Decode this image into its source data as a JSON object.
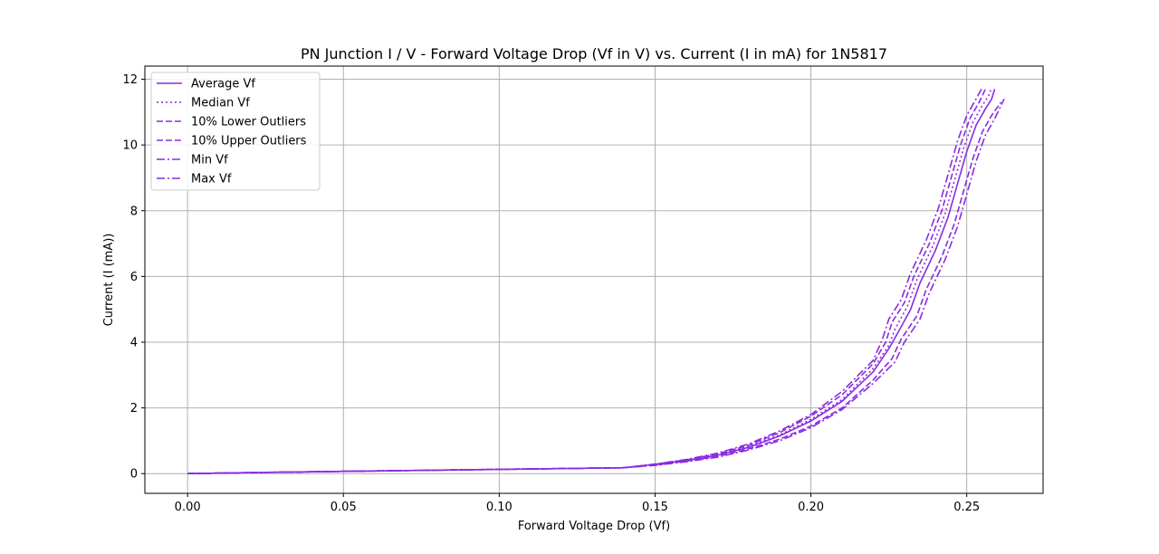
{
  "chart_data": {
    "type": "line",
    "title": "PN Junction I / V - Forward Voltage Drop (Vf in V) vs. Current (I in mA) for 1N5817",
    "xlabel": "Forward Voltage Drop (Vf)",
    "ylabel": "Current (I (mA))",
    "xlim": [
      -0.0137,
      0.2745
    ],
    "ylim": [
      -0.6,
      12.4
    ],
    "xticks": [
      0.0,
      0.05,
      0.1,
      0.15,
      0.2,
      0.25
    ],
    "xtick_labels": [
      "0.00",
      "0.05",
      "0.10",
      "0.15",
      "0.20",
      "0.25"
    ],
    "yticks": [
      0,
      2,
      4,
      6,
      8,
      10,
      12
    ],
    "ytick_labels": [
      "0",
      "2",
      "4",
      "6",
      "8",
      "10",
      "12"
    ],
    "grid": true,
    "legend_position": "top-left",
    "color": "#8a2be2",
    "series": [
      {
        "name": "Average Vf",
        "dash": "solid",
        "points": [
          [
            0.0,
            0.0
          ],
          [
            0.02,
            0.03
          ],
          [
            0.05,
            0.07
          ],
          [
            0.1,
            0.13
          ],
          [
            0.14,
            0.18
          ],
          [
            0.15,
            0.28
          ],
          [
            0.16,
            0.4
          ],
          [
            0.17,
            0.56
          ],
          [
            0.18,
            0.8
          ],
          [
            0.19,
            1.15
          ],
          [
            0.2,
            1.6
          ],
          [
            0.21,
            2.2
          ],
          [
            0.22,
            3.1
          ],
          [
            0.225,
            3.8
          ],
          [
            0.228,
            4.3
          ],
          [
            0.232,
            5.0
          ],
          [
            0.235,
            5.8
          ],
          [
            0.24,
            6.8
          ],
          [
            0.244,
            7.8
          ],
          [
            0.247,
            8.8
          ],
          [
            0.25,
            9.8
          ],
          [
            0.253,
            10.6
          ],
          [
            0.256,
            11.1
          ],
          [
            0.258,
            11.4
          ],
          [
            0.259,
            11.7
          ]
        ]
      },
      {
        "name": "Median Vf",
        "dash": "dotted",
        "points": [
          [
            0.0,
            0.0
          ],
          [
            0.02,
            0.03
          ],
          [
            0.05,
            0.07
          ],
          [
            0.1,
            0.13
          ],
          [
            0.14,
            0.18
          ],
          [
            0.15,
            0.28
          ],
          [
            0.16,
            0.41
          ],
          [
            0.17,
            0.57
          ],
          [
            0.18,
            0.82
          ],
          [
            0.19,
            1.18
          ],
          [
            0.2,
            1.65
          ],
          [
            0.21,
            2.25
          ],
          [
            0.22,
            3.2
          ],
          [
            0.225,
            3.9
          ],
          [
            0.227,
            4.4
          ],
          [
            0.231,
            5.1
          ],
          [
            0.234,
            5.9
          ],
          [
            0.239,
            6.9
          ],
          [
            0.243,
            7.9
          ],
          [
            0.246,
            8.9
          ],
          [
            0.249,
            9.9
          ],
          [
            0.252,
            10.7
          ],
          [
            0.255,
            11.2
          ],
          [
            0.257,
            11.5
          ],
          [
            0.258,
            11.75
          ]
        ]
      },
      {
        "name": "10% Lower Outliers",
        "dash": "dashed",
        "points": [
          [
            0.0,
            0.0
          ],
          [
            0.02,
            0.03
          ],
          [
            0.05,
            0.07
          ],
          [
            0.1,
            0.13
          ],
          [
            0.14,
            0.18
          ],
          [
            0.15,
            0.26
          ],
          [
            0.16,
            0.38
          ],
          [
            0.17,
            0.52
          ],
          [
            0.18,
            0.75
          ],
          [
            0.19,
            1.05
          ],
          [
            0.2,
            1.45
          ],
          [
            0.21,
            2.0
          ],
          [
            0.22,
            2.85
          ],
          [
            0.226,
            3.5
          ],
          [
            0.229,
            4.1
          ],
          [
            0.234,
            4.8
          ],
          [
            0.237,
            5.6
          ],
          [
            0.242,
            6.6
          ],
          [
            0.246,
            7.6
          ],
          [
            0.249,
            8.6
          ],
          [
            0.252,
            9.6
          ],
          [
            0.255,
            10.4
          ],
          [
            0.258,
            10.9
          ],
          [
            0.261,
            11.3
          ]
        ]
      },
      {
        "name": "10% Upper Outliers",
        "dash": "dashed",
        "points": [
          [
            0.0,
            0.0
          ],
          [
            0.02,
            0.03
          ],
          [
            0.05,
            0.07
          ],
          [
            0.1,
            0.13
          ],
          [
            0.14,
            0.18
          ],
          [
            0.15,
            0.29
          ],
          [
            0.16,
            0.42
          ],
          [
            0.17,
            0.6
          ],
          [
            0.18,
            0.86
          ],
          [
            0.19,
            1.25
          ],
          [
            0.2,
            1.75
          ],
          [
            0.21,
            2.4
          ],
          [
            0.22,
            3.35
          ],
          [
            0.224,
            4.0
          ],
          [
            0.226,
            4.6
          ],
          [
            0.23,
            5.2
          ],
          [
            0.233,
            6.0
          ],
          [
            0.238,
            7.0
          ],
          [
            0.242,
            8.0
          ],
          [
            0.245,
            9.0
          ],
          [
            0.248,
            10.0
          ],
          [
            0.251,
            10.8
          ],
          [
            0.254,
            11.3
          ],
          [
            0.256,
            11.7
          ]
        ]
      },
      {
        "name": "Min Vf",
        "dash": "dashdot",
        "points": [
          [
            0.0,
            0.0
          ],
          [
            0.02,
            0.03
          ],
          [
            0.05,
            0.07
          ],
          [
            0.1,
            0.13
          ],
          [
            0.14,
            0.18
          ],
          [
            0.15,
            0.29
          ],
          [
            0.16,
            0.43
          ],
          [
            0.17,
            0.62
          ],
          [
            0.18,
            0.9
          ],
          [
            0.19,
            1.3
          ],
          [
            0.2,
            1.8
          ],
          [
            0.21,
            2.5
          ],
          [
            0.22,
            3.45
          ],
          [
            0.223,
            4.1
          ],
          [
            0.225,
            4.7
          ],
          [
            0.229,
            5.3
          ],
          [
            0.232,
            6.1
          ],
          [
            0.237,
            7.1
          ],
          [
            0.241,
            8.1
          ],
          [
            0.244,
            9.1
          ],
          [
            0.247,
            10.1
          ],
          [
            0.25,
            10.9
          ],
          [
            0.253,
            11.4
          ],
          [
            0.255,
            11.75
          ]
        ]
      },
      {
        "name": "Max Vf",
        "dash": "dashdot",
        "points": [
          [
            0.0,
            0.0
          ],
          [
            0.02,
            0.03
          ],
          [
            0.05,
            0.07
          ],
          [
            0.1,
            0.13
          ],
          [
            0.14,
            0.18
          ],
          [
            0.15,
            0.25
          ],
          [
            0.16,
            0.36
          ],
          [
            0.17,
            0.5
          ],
          [
            0.18,
            0.72
          ],
          [
            0.19,
            1.0
          ],
          [
            0.2,
            1.4
          ],
          [
            0.21,
            1.95
          ],
          [
            0.22,
            2.75
          ],
          [
            0.227,
            3.4
          ],
          [
            0.23,
            4.0
          ],
          [
            0.235,
            4.7
          ],
          [
            0.238,
            5.5
          ],
          [
            0.243,
            6.5
          ],
          [
            0.247,
            7.5
          ],
          [
            0.25,
            8.5
          ],
          [
            0.253,
            9.5
          ],
          [
            0.256,
            10.3
          ],
          [
            0.259,
            10.8
          ],
          [
            0.262,
            11.4
          ]
        ]
      }
    ]
  }
}
